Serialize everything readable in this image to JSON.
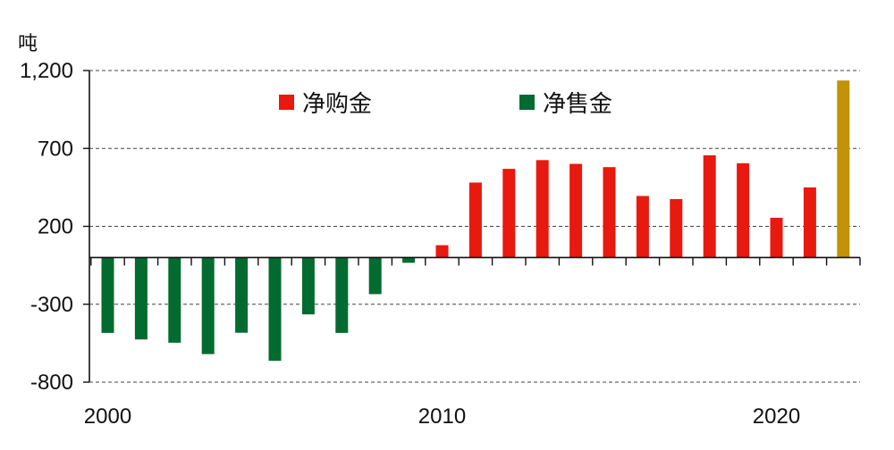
{
  "chart_data": {
    "type": "bar",
    "unit_label": "吨",
    "x": [
      2000,
      2001,
      2002,
      2003,
      2004,
      2005,
      2006,
      2007,
      2008,
      2009,
      2010,
      2011,
      2012,
      2013,
      2014,
      2015,
      2016,
      2017,
      2018,
      2019,
      2020,
      2021,
      2022
    ],
    "values": [
      -484,
      -526,
      -547,
      -620,
      -483,
      -663,
      -365,
      -484,
      -235,
      -34,
      79,
      481,
      569,
      625,
      601,
      580,
      395,
      375,
      656,
      605,
      255,
      450,
      1136
    ],
    "bar_colors": [
      "#036b2f",
      "#036b2f",
      "#036b2f",
      "#036b2f",
      "#036b2f",
      "#036b2f",
      "#036b2f",
      "#036b2f",
      "#036b2f",
      "#036b2f",
      "#e8190e",
      "#e8190e",
      "#e8190e",
      "#e8190e",
      "#e8190e",
      "#e8190e",
      "#e8190e",
      "#e8190e",
      "#e8190e",
      "#e8190e",
      "#e8190e",
      "#e8190e",
      "#c29208"
    ],
    "y_ticks": [
      1200,
      700,
      200,
      -300,
      -800
    ],
    "y_tick_labels": [
      "1,200",
      "700",
      "200",
      "-300",
      "-800"
    ],
    "x_tick_labels": [
      {
        "x": 2000,
        "label": "2000"
      },
      {
        "x": 2010,
        "label": "2010"
      },
      {
        "x": 2020,
        "label": "2020"
      }
    ],
    "ylim": [
      -800,
      1200
    ],
    "grid": true,
    "legend": {
      "placement": "top",
      "entries": [
        {
          "label": "净购金",
          "color": "#e8190e"
        },
        {
          "label": "净售金",
          "color": "#036b2f"
        }
      ]
    }
  }
}
